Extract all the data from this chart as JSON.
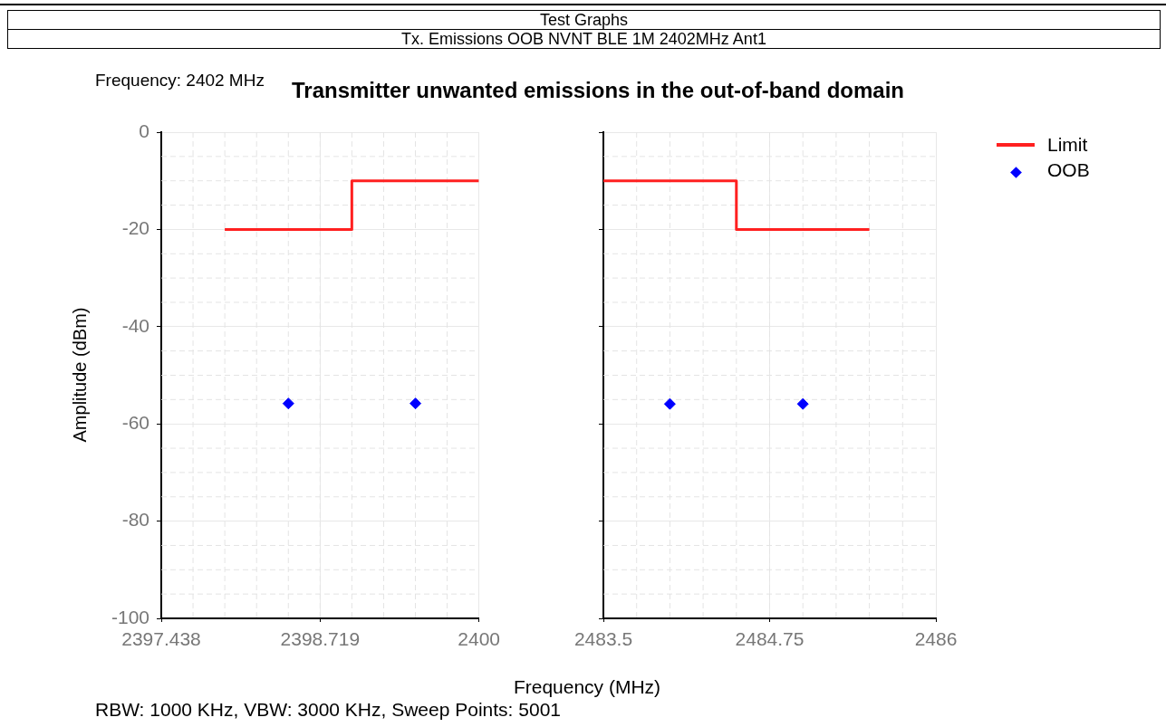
{
  "chart_data": [
    {
      "type": "line",
      "title": "Transmitter unwanted emissions in the out-of-band domain",
      "xlabel": "Frequency (MHz)",
      "ylabel": "Amplitude (dBm)",
      "annotations": [
        "Test Graphs",
        "Tx. Emissions OOB NVNT BLE 1M 2402MHz Ant1",
        "Frequency: 2402 MHz",
        "RBW: 1000 KHz,  VBW: 3000 KHz,  Sweep Points: 5001"
      ],
      "xlim": [
        2397.438,
        2400
      ],
      "xticks": [
        2397.438,
        2398.719,
        2400
      ],
      "ylim": [
        -100,
        0
      ],
      "yticks": [
        -100,
        -80,
        -60,
        -40,
        -20,
        0
      ],
      "grid": true,
      "legend": false,
      "series": [
        {
          "color": "#ff2020",
          "x": [
            2397.95,
            2398.975,
            2398.975,
            2400
          ],
          "values": [
            -20,
            -20,
            -10,
            -10
          ],
          "marker": "none"
        },
        {
          "type": "scatter",
          "color": "#0000ff",
          "x": [
            2398.463,
            2399.488
          ],
          "values": [
            -55.8,
            -55.8
          ],
          "marker": "diamond"
        }
      ]
    },
    {
      "type": "line",
      "xlim": [
        2483.5,
        2486
      ],
      "xticks": [
        2483.5,
        2484.75,
        2486
      ],
      "ylim": [
        -100,
        0
      ],
      "yticks": [
        -100,
        -80,
        -60,
        -40,
        -20,
        0
      ],
      "grid": true,
      "legend": "top right",
      "tick_labels": "x",
      "series": [
        {
          "name": "Limit",
          "color": "#ff2020",
          "x": [
            2483.5,
            2484.5,
            2484.5,
            2485.5
          ],
          "values": [
            -10,
            -10,
            -20,
            -20
          ],
          "marker": "none"
        },
        {
          "type": "scatter",
          "name": "OOB",
          "color": "#0000ff",
          "x": [
            2484,
            2485
          ],
          "values": [
            -55.9,
            -55.9
          ],
          "marker": "diamond"
        }
      ]
    }
  ]
}
